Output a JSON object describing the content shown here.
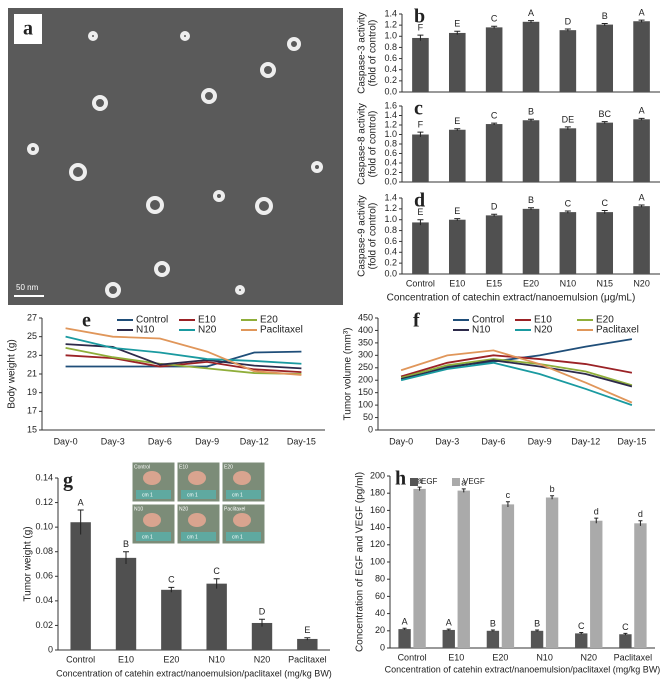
{
  "image": {
    "panel": "a",
    "scale_bar": "50 nm"
  },
  "chart_data": [
    {
      "type": "bar",
      "panel": "b",
      "ylabel": [
        "Caspase-3 activity",
        "(fold of control)"
      ],
      "color": "#505050",
      "values": [
        0.97,
        1.06,
        1.16,
        1.26,
        1.11,
        1.21,
        1.27
      ],
      "errors": [
        0.05,
        0.03,
        0.02,
        0.02,
        0.02,
        0.02,
        0.02
      ],
      "annotations": [
        "F",
        "E",
        "C",
        "A",
        "D",
        "B",
        "A"
      ],
      "ylim": [
        0,
        1.4
      ],
      "yticks": [
        {
          "value": 0,
          "label": "0.0"
        },
        0.2,
        0.4,
        0.6,
        0.8,
        {
          "value": 1,
          "label": "1.0"
        },
        1.2,
        1.4
      ]
    },
    {
      "type": "bar",
      "panel": "c",
      "ylabel": [
        "Caspase-8 activity",
        "(fold of control)"
      ],
      "color": "#505050",
      "values": [
        1.0,
        1.1,
        1.22,
        1.3,
        1.13,
        1.25,
        1.32
      ],
      "errors": [
        0.05,
        0.02,
        0.02,
        0.02,
        0.03,
        0.02,
        0.02
      ],
      "annotations": [
        "F",
        "E",
        "C",
        "B",
        "DE",
        "BC",
        "A"
      ],
      "ylim": [
        0,
        1.6
      ],
      "yticks": [
        {
          "value": 0,
          "label": "0.0"
        },
        0.2,
        0.4,
        0.6,
        0.8,
        {
          "value": 1,
          "label": "1.0"
        },
        1.2,
        1.4,
        1.6
      ]
    },
    {
      "type": "bar",
      "panel": "d",
      "ylabel": [
        "Caspase-9 activity",
        "(fold of control)"
      ],
      "color": "#505050",
      "categories": [
        "Control",
        "E10",
        "E15",
        "E20",
        "N10",
        "N15",
        "N20"
      ],
      "xlabel": "Concentration of catechin extract/nanoemulsion (μg/mL)",
      "values": [
        0.95,
        1.0,
        1.08,
        1.2,
        1.14,
        1.14,
        1.25
      ],
      "errors": [
        0.05,
        0.02,
        0.02,
        0.02,
        0.02,
        0.03,
        0.02
      ],
      "annotations": [
        "E",
        "E",
        "D",
        "B",
        "C",
        "C",
        "A"
      ],
      "ylim": [
        0,
        1.4
      ],
      "yticks": [
        {
          "value": 0,
          "label": "0.0"
        },
        0.2,
        0.4,
        0.6,
        0.8,
        {
          "value": 1,
          "label": "1.0"
        },
        1.2,
        1.4
      ]
    },
    {
      "type": "line",
      "panel": "e",
      "ylabel": "Body weight (g)",
      "categories": [
        "Day-0",
        "Day-3",
        "Day-6",
        "Day-9",
        "Day-12",
        "Day-15"
      ],
      "series": [
        {
          "name": "Control",
          "color": "#1f4e79",
          "values": [
            21.8,
            21.8,
            21.8,
            21.8,
            23.3,
            23.4
          ]
        },
        {
          "name": "E10",
          "color": "#9b2226",
          "values": [
            23.0,
            22.7,
            21.8,
            22.3,
            21.5,
            21.2
          ]
        },
        {
          "name": "E20",
          "color": "#8fae3a",
          "values": [
            23.8,
            22.8,
            22.1,
            21.6,
            21.1,
            21.0
          ]
        },
        {
          "name": "N10",
          "color": "#2d2a4a",
          "values": [
            24.2,
            23.9,
            22.0,
            22.5,
            21.9,
            21.6
          ]
        },
        {
          "name": "N20",
          "color": "#1a9aa0",
          "values": [
            25.0,
            23.8,
            23.3,
            22.6,
            22.4,
            22.1
          ]
        },
        {
          "name": "Paclitaxel",
          "color": "#e0965a",
          "values": [
            25.9,
            25.0,
            24.8,
            23.4,
            21.3,
            20.9
          ]
        }
      ],
      "ylim": [
        15,
        27
      ],
      "yticks": [
        15,
        17,
        19,
        21,
        23,
        25,
        27
      ]
    },
    {
      "type": "line",
      "panel": "f",
      "ylabel": "Tumor volume (mm³)",
      "categories": [
        "Day-0",
        "Day-3",
        "Day-6",
        "Day-9",
        "Day-12",
        "Day-15"
      ],
      "series": [
        {
          "name": "Control",
          "color": "#1f4e79",
          "values": [
            215,
            255,
            275,
            300,
            335,
            365
          ]
        },
        {
          "name": "E10",
          "color": "#9b2226",
          "values": [
            215,
            270,
            300,
            285,
            265,
            230
          ]
        },
        {
          "name": "E20",
          "color": "#8fae3a",
          "values": [
            210,
            260,
            285,
            265,
            235,
            180
          ]
        },
        {
          "name": "N10",
          "color": "#2d2a4a",
          "values": [
            205,
            250,
            280,
            255,
            225,
            175
          ]
        },
        {
          "name": "N20",
          "color": "#1a9aa0",
          "values": [
            200,
            245,
            270,
            225,
            165,
            100
          ]
        },
        {
          "name": "Paclitaxel",
          "color": "#e0965a",
          "values": [
            240,
            300,
            320,
            265,
            190,
            110
          ]
        }
      ],
      "ylim": [
        0,
        450
      ],
      "yticks": [
        0,
        50,
        100,
        150,
        200,
        250,
        300,
        350,
        400,
        450
      ]
    },
    {
      "type": "bar",
      "panel": "g",
      "ylabel": "Tumor weight (g)",
      "color": "#505050",
      "categories": [
        "Control",
        "E10",
        "E20",
        "N10",
        "N20",
        "Paclitaxel"
      ],
      "xlabel": "Concentration of catehin extract/nanoemulsion/paclitaxel (mg/kg BW)",
      "values": [
        0.104,
        0.075,
        0.049,
        0.054,
        0.022,
        0.009
      ],
      "errors": [
        0.01,
        0.005,
        0.002,
        0.004,
        0.003,
        0.001
      ],
      "annotations": [
        "A",
        "B",
        "C",
        "C",
        "D",
        "E"
      ],
      "inset": [
        "Control",
        "E10",
        "E20",
        "N10",
        "N20",
        "Paclitaxel"
      ],
      "ruler": "cm 1",
      "ylim": [
        0,
        0.14
      ],
      "yticks": [
        0,
        0.02,
        0.04,
        0.06,
        0.08,
        {
          "value": 0.1,
          "label": "0.10"
        },
        0.12,
        0.14
      ]
    },
    {
      "type": "grouped_bar",
      "panel": "h",
      "ylabel": "Concentration of EGF and VEGF (pg/ml)",
      "categories": [
        "Control",
        "E10",
        "E20",
        "N10",
        "N20",
        "Paclitaxel"
      ],
      "xlabel": "Concentration of catehin extract/nanoemulsion/paclitaxel (mg/kg BW)",
      "series": [
        {
          "name": "EGF",
          "color": "#555555",
          "values": [
            22,
            21,
            20,
            20,
            17,
            16
          ],
          "errors": [
            1,
            1,
            1,
            1,
            1,
            1
          ],
          "annotations": [
            "A",
            "A",
            "B",
            "B",
            "C",
            "C"
          ]
        },
        {
          "name": "VEGF",
          "color": "#aaaaaa",
          "values": [
            185,
            183,
            167,
            175,
            148,
            145
          ],
          "errors": [
            2,
            2,
            3,
            2,
            3,
            3
          ],
          "annotations": [
            "a",
            "a",
            "c",
            "b",
            "d",
            "d"
          ]
        }
      ],
      "ylim": [
        0,
        200
      ],
      "yticks": [
        0,
        20,
        40,
        60,
        80,
        100,
        120,
        140,
        160,
        180,
        200
      ]
    }
  ]
}
